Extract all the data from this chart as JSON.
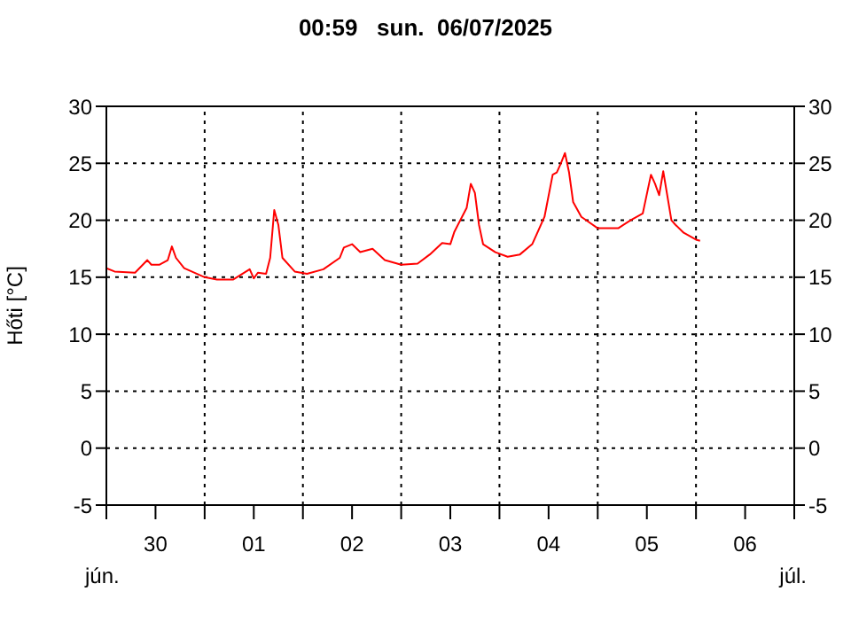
{
  "chart_data": {
    "type": "line",
    "title": "00:59   sun.  06/07/2025",
    "ylabel": "Hőti [°C]",
    "annotations": [
      "jún.",
      "júl."
    ],
    "x": [
      "2025-06-30T00:00",
      "2025-06-30T02:00",
      "2025-06-30T07:00",
      "2025-06-30T10:00",
      "2025-06-30T11:00",
      "2025-06-30T13:00",
      "2025-06-30T15:00",
      "2025-06-30T16:00",
      "2025-06-30T17:00",
      "2025-06-30T19:00",
      "2025-07-01T00:00",
      "2025-07-01T03:00",
      "2025-07-01T07:00",
      "2025-07-01T11:00",
      "2025-07-01T12:00",
      "2025-07-01T13:00",
      "2025-07-01T15:00",
      "2025-07-01T16:00",
      "2025-07-01T17:00",
      "2025-07-01T18:00",
      "2025-07-01T19:00",
      "2025-07-01T22:00",
      "2025-07-02T01:00",
      "2025-07-02T05:00",
      "2025-07-02T09:00",
      "2025-07-02T10:00",
      "2025-07-02T12:00",
      "2025-07-02T14:00",
      "2025-07-02T17:00",
      "2025-07-02T20:00",
      "2025-07-03T00:00",
      "2025-07-03T04:00",
      "2025-07-03T07:00",
      "2025-07-03T10:00",
      "2025-07-03T12:00",
      "2025-07-03T13:00",
      "2025-07-03T16:00",
      "2025-07-03T17:00",
      "2025-07-03T18:00",
      "2025-07-03T19:00",
      "2025-07-03T20:00",
      "2025-07-03T23:00",
      "2025-07-04T02:00",
      "2025-07-04T05:00",
      "2025-07-04T08:00",
      "2025-07-04T11:00",
      "2025-07-04T13:00",
      "2025-07-04T14:00",
      "2025-07-04T15:00",
      "2025-07-04T16:00",
      "2025-07-04T17:00",
      "2025-07-04T18:00",
      "2025-07-04T20:00",
      "2025-07-05T00:00",
      "2025-07-05T05:00",
      "2025-07-05T08:00",
      "2025-07-05T11:00",
      "2025-07-05T13:00",
      "2025-07-05T14:00",
      "2025-07-05T15:00",
      "2025-07-05T16:00",
      "2025-07-05T18:00",
      "2025-07-05T19:00",
      "2025-07-05T21:00",
      "2025-07-06T00:00",
      "2025-07-06T01:00"
    ],
    "series": [
      {
        "color": "#ff0000",
        "values": [
          15.8,
          15.5,
          15.4,
          16.5,
          16.1,
          16.1,
          16.5,
          17.7,
          16.7,
          15.8,
          15.0,
          14.8,
          14.8,
          15.7,
          14.9,
          15.4,
          15.3,
          16.7,
          20.9,
          19.6,
          16.7,
          15.5,
          15.3,
          15.7,
          16.7,
          17.6,
          17.9,
          17.2,
          17.5,
          16.5,
          16.1,
          16.2,
          17.0,
          18.0,
          17.9,
          19.0,
          21.1,
          23.2,
          22.4,
          19.6,
          17.9,
          17.2,
          16.8,
          17.0,
          17.9,
          20.3,
          24.0,
          24.2,
          25.0,
          25.9,
          24.2,
          21.6,
          20.3,
          19.3,
          19.3,
          20.0,
          20.6,
          24.0,
          23.2,
          22.2,
          24.3,
          20.0,
          19.6,
          18.9,
          18.3,
          18.2
        ]
      }
    ],
    "xlim": [
      "2025-06-30T00:00",
      "2025-07-07T00:00"
    ],
    "xticks": [
      {
        "value": "2025-06-30T00:00",
        "label": null
      },
      {
        "value": "2025-06-30T12:00",
        "label": "30"
      },
      {
        "value": "2025-07-01T00:00",
        "label": null
      },
      {
        "value": "2025-07-01T12:00",
        "label": "01"
      },
      {
        "value": "2025-07-02T00:00",
        "label": null
      },
      {
        "value": "2025-07-02T12:00",
        "label": "02"
      },
      {
        "value": "2025-07-03T00:00",
        "label": null
      },
      {
        "value": "2025-07-03T12:00",
        "label": "03"
      },
      {
        "value": "2025-07-04T00:00",
        "label": null
      },
      {
        "value": "2025-07-04T12:00",
        "label": "04"
      },
      {
        "value": "2025-07-05T00:00",
        "label": null
      },
      {
        "value": "2025-07-05T12:00",
        "label": "05"
      },
      {
        "value": "2025-07-06T00:00",
        "label": null
      },
      {
        "value": "2025-07-06T12:00",
        "label": "06"
      },
      {
        "value": "2025-07-07T00:00",
        "label": null
      }
    ],
    "ylim": [
      -5,
      30
    ],
    "yticks": [
      -5,
      0,
      5,
      10,
      15,
      20,
      25,
      30
    ],
    "y2lim": [
      -5,
      30
    ],
    "y2ticks": [
      -5,
      0,
      5,
      10,
      15,
      20,
      25,
      30
    ],
    "grid": true,
    "marker": "none",
    "line_style": "solid"
  }
}
